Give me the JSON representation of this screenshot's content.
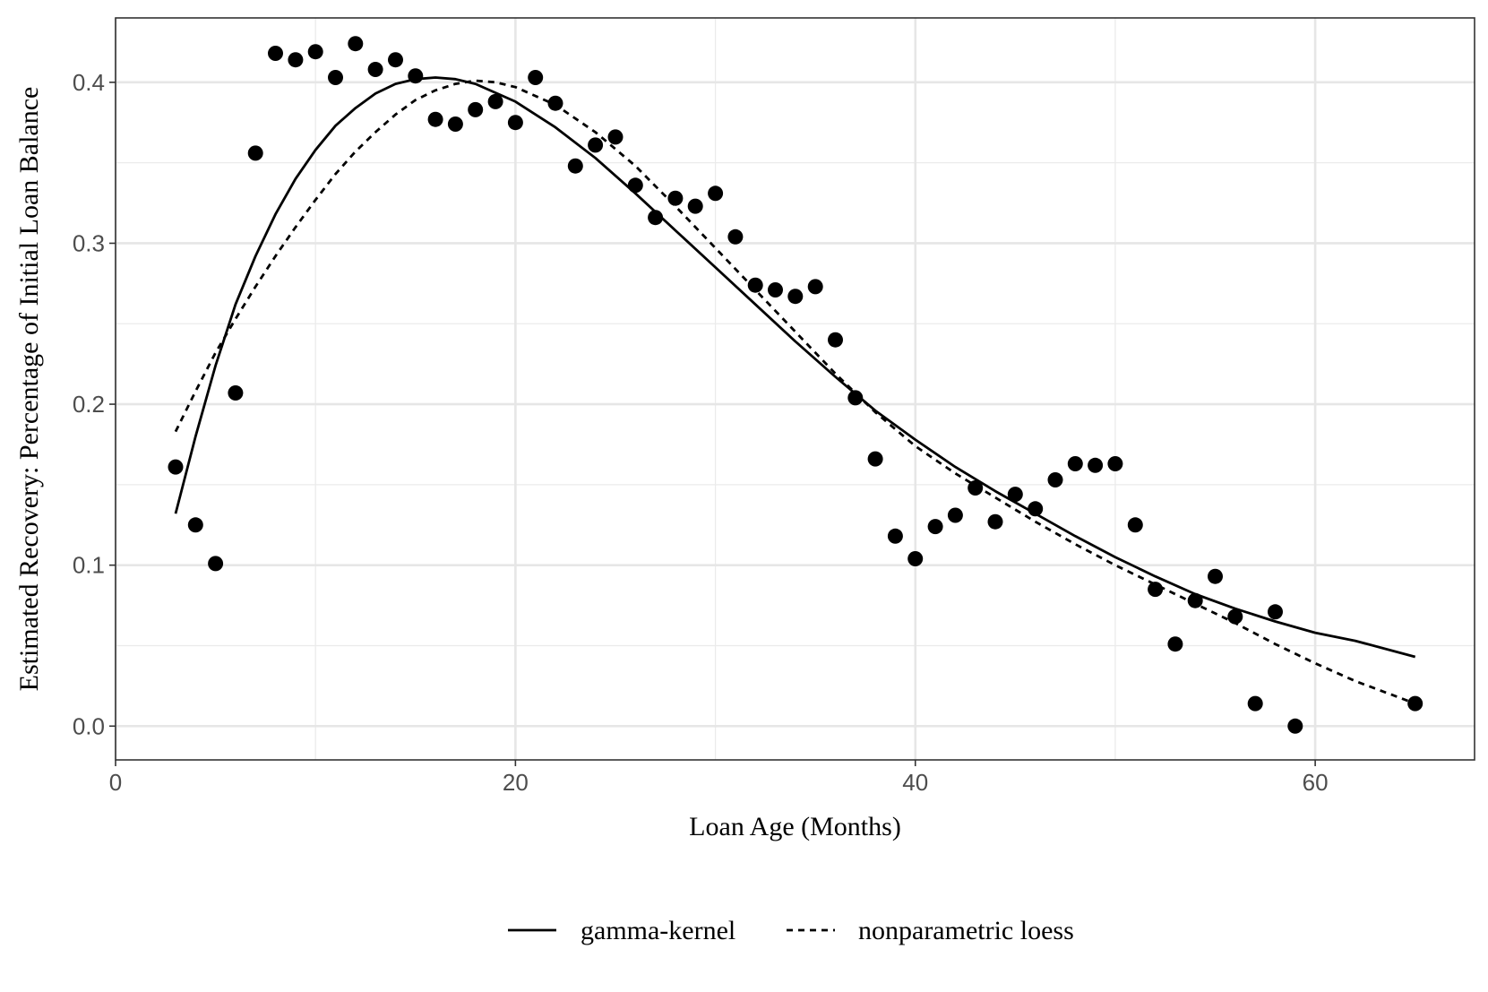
{
  "chart_data": {
    "type": "scatter",
    "title": "",
    "xlabel": "Loan Age (Months)",
    "ylabel": "Estimated Recovery: Percentage of Initial Loan Balance",
    "xlim": [
      0,
      67.97
    ],
    "ylim": [
      -0.021,
      0.44
    ],
    "x_ticks": [
      0,
      20,
      40,
      60
    ],
    "x_tick_labels": [
      "0",
      "20",
      "40",
      "60"
    ],
    "y_ticks": [
      0.0,
      0.1,
      0.2,
      0.3,
      0.4
    ],
    "y_tick_labels": [
      "0.0",
      "0.1",
      "0.2",
      "0.3",
      "0.4"
    ],
    "grid": true,
    "legend_position": "bottom",
    "points": {
      "x": [
        3,
        4,
        5,
        6,
        7,
        8,
        9,
        10,
        11,
        12,
        13,
        14,
        15,
        16,
        17,
        18,
        19,
        20,
        21,
        22,
        23,
        24,
        25,
        26,
        27,
        28,
        29,
        30,
        31,
        32,
        33,
        34,
        35,
        36,
        37,
        38,
        39,
        40,
        41,
        42,
        43,
        44,
        45,
        46,
        47,
        48,
        49,
        50,
        51,
        52,
        53,
        54,
        55,
        56,
        57,
        58,
        59,
        65
      ],
      "y": [
        0.161,
        0.125,
        0.101,
        0.207,
        0.356,
        0.418,
        0.414,
        0.419,
        0.403,
        0.424,
        0.408,
        0.414,
        0.404,
        0.377,
        0.374,
        0.383,
        0.388,
        0.375,
        0.403,
        0.387,
        0.348,
        0.361,
        0.366,
        0.336,
        0.316,
        0.328,
        0.323,
        0.331,
        0.304,
        0.274,
        0.271,
        0.267,
        0.273,
        0.24,
        0.204,
        0.166,
        0.118,
        0.104,
        0.124,
        0.131,
        0.148,
        0.127,
        0.144,
        0.135,
        0.153,
        0.163,
        0.162,
        0.163,
        0.125,
        0.085,
        0.051,
        0.078,
        0.093,
        0.068,
        0.014,
        0.071,
        0.0,
        0.014
      ]
    },
    "series": [
      {
        "name": "gamma-kernel",
        "line": "solid",
        "x": [
          3,
          4,
          5,
          6,
          7,
          8,
          9,
          10,
          11,
          12,
          13,
          14,
          15,
          16,
          17,
          18,
          20,
          22,
          24,
          26,
          28,
          30,
          32,
          34,
          36,
          38,
          40,
          42,
          44,
          46,
          48,
          50,
          52,
          54,
          56,
          58,
          60,
          62,
          65
        ],
        "y": [
          0.132,
          0.18,
          0.224,
          0.262,
          0.292,
          0.318,
          0.34,
          0.358,
          0.373,
          0.384,
          0.393,
          0.399,
          0.402,
          0.403,
          0.402,
          0.399,
          0.388,
          0.372,
          0.353,
          0.331,
          0.308,
          0.285,
          0.262,
          0.239,
          0.217,
          0.196,
          0.178,
          0.161,
          0.146,
          0.132,
          0.118,
          0.105,
          0.093,
          0.082,
          0.073,
          0.065,
          0.058,
          0.053,
          0.043
        ]
      },
      {
        "name": "nonparametric loess",
        "line": "dashed",
        "x": [
          3,
          4,
          5,
          6,
          7,
          8,
          9,
          10,
          11,
          12,
          13,
          14,
          15,
          16,
          17,
          18,
          19,
          20,
          22,
          24,
          26,
          28,
          30,
          32,
          34,
          36,
          38,
          40,
          42,
          44,
          46,
          48,
          50,
          52,
          54,
          56,
          58,
          60,
          62,
          65
        ],
        "y": [
          0.183,
          0.208,
          0.232,
          0.253,
          0.273,
          0.292,
          0.31,
          0.327,
          0.343,
          0.357,
          0.369,
          0.38,
          0.389,
          0.395,
          0.399,
          0.401,
          0.4,
          0.397,
          0.386,
          0.369,
          0.348,
          0.323,
          0.297,
          0.271,
          0.245,
          0.219,
          0.195,
          0.174,
          0.157,
          0.142,
          0.127,
          0.113,
          0.1,
          0.088,
          0.076,
          0.064,
          0.051,
          0.039,
          0.028,
          0.014
        ]
      }
    ]
  }
}
